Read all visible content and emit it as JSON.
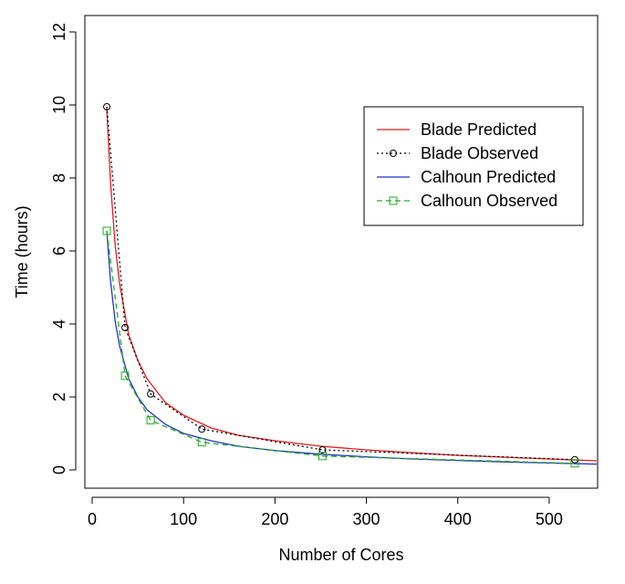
{
  "chart_data": {
    "type": "line",
    "xlabel": "Number of Cores",
    "ylabel": "Time (hours)",
    "xlim": [
      -8,
      553
    ],
    "ylim": [
      -0.5,
      12.45
    ],
    "xticks": [
      0,
      100,
      200,
      300,
      400,
      500
    ],
    "yticks": [
      0,
      2,
      4,
      6,
      8,
      10,
      12
    ],
    "legend": "topright",
    "series": [
      {
        "name": "Blade Predicted",
        "color": "#e41a1c",
        "dash": "solid",
        "marker": "none",
        "x": [
          16,
          20,
          25,
          30,
          40,
          50,
          60,
          80,
          100,
          130,
          160,
          200,
          250,
          300,
          350,
          400,
          450,
          500,
          552
        ],
        "values": [
          9.9,
          7.9,
          6.2,
          5.1,
          3.7,
          3.0,
          2.5,
          1.85,
          1.5,
          1.15,
          0.95,
          0.8,
          0.65,
          0.55,
          0.47,
          0.4,
          0.35,
          0.3,
          0.25
        ]
      },
      {
        "name": "Blade Observed",
        "color": "#000000",
        "dash": "dotted",
        "marker": "circle",
        "x": [
          16,
          36,
          64,
          120,
          252,
          528
        ],
        "values": [
          9.95,
          3.9,
          2.08,
          1.12,
          0.55,
          0.28
        ]
      },
      {
        "name": "Calhoun Predicted",
        "color": "#2233cc",
        "dash": "solid",
        "marker": "none",
        "x": [
          16,
          20,
          25,
          30,
          40,
          50,
          60,
          80,
          100,
          130,
          160,
          200,
          250,
          300,
          350,
          400,
          450,
          500,
          552
        ],
        "values": [
          6.55,
          5.2,
          4.1,
          3.4,
          2.5,
          2.0,
          1.65,
          1.25,
          1.0,
          0.8,
          0.65,
          0.53,
          0.43,
          0.36,
          0.3,
          0.26,
          0.22,
          0.19,
          0.16
        ]
      },
      {
        "name": "Calhoun Observed",
        "color": "#22aa22",
        "dash": "dashed",
        "marker": "square",
        "x": [
          16,
          36,
          64,
          120,
          252,
          528
        ],
        "values": [
          6.55,
          2.58,
          1.36,
          0.76,
          0.38,
          0.18
        ]
      }
    ]
  }
}
